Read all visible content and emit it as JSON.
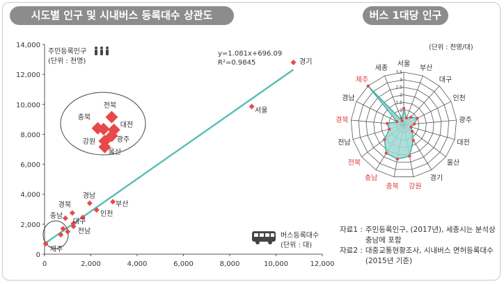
{
  "titles": {
    "left": "시도별 인구 및 시내버스 등록대수 상관도",
    "right": "버스 1대당 인구"
  },
  "chart_data": [
    {
      "type": "scatter",
      "title": "시도별 인구 및 시내버스 등록대수 상관도",
      "ylabel": "주민등록인구 (단위 : 천명)",
      "xlabel": "버스등록대수 (단위 : 대)",
      "ylabel_lines": [
        "주민등록인구",
        "(단위 : 천명)"
      ],
      "xlabel_lines": [
        "버스등록대수",
        "(단위 : 대)"
      ],
      "xlim": [
        0,
        12000
      ],
      "ylim": [
        0,
        14000
      ],
      "x_ticks": [
        0,
        2000,
        4000,
        6000,
        8000,
        10000,
        12000
      ],
      "y_ticks": [
        0,
        2000,
        4000,
        6000,
        8000,
        10000,
        12000,
        14000
      ],
      "x_tick_labels": [
        "0",
        "2,000",
        "4,000",
        "6,000",
        "8,000",
        "10,000",
        "12,000"
      ],
      "y_tick_labels": [
        "0",
        "2,000",
        "4,000",
        "6,000",
        "8,000",
        "10,000",
        "12,000",
        "14,000"
      ],
      "regression": {
        "equation": "y=1.081x+696.09",
        "r2": "R²=0.9845",
        "slope": 1.081,
        "intercept": 696.09
      },
      "points": [
        {
          "label": "경기",
          "x": 10750,
          "y": 12800,
          "size": "small"
        },
        {
          "label": "서울",
          "x": 8950,
          "y": 9850,
          "size": "small"
        },
        {
          "label": "전북",
          "x": 2900,
          "y": 9150,
          "size": "large"
        },
        {
          "label": "충북",
          "x": 2300,
          "y": 8400,
          "size": "large"
        },
        {
          "label": "",
          "x": 2550,
          "y": 8350,
          "size": "large"
        },
        {
          "label": "대전",
          "x": 3000,
          "y": 8300,
          "size": "large"
        },
        {
          "label": "광주",
          "x": 2900,
          "y": 7900,
          "size": "large"
        },
        {
          "label": "강원",
          "x": 2600,
          "y": 7550,
          "size": "large"
        },
        {
          "label": "울산",
          "x": 2600,
          "y": 7150,
          "size": "large"
        },
        {
          "label": "경남",
          "x": 1950,
          "y": 3400,
          "size": "small"
        },
        {
          "label": "부산",
          "x": 2950,
          "y": 3500,
          "size": "small"
        },
        {
          "label": "인천",
          "x": 2250,
          "y": 2950,
          "size": "small"
        },
        {
          "label": "경북",
          "x": 1200,
          "y": 2750,
          "size": "small"
        },
        {
          "label": "충남",
          "x": 900,
          "y": 2400,
          "size": "small"
        },
        {
          "label": "대구",
          "x": 1650,
          "y": 2450,
          "size": "small"
        },
        {
          "label": "",
          "x": 1250,
          "y": 2050,
          "size": "small"
        },
        {
          "label": "전남",
          "x": 1250,
          "y": 1850,
          "size": "small"
        },
        {
          "label": "",
          "x": 800,
          "y": 1700,
          "size": "small"
        },
        {
          "label": "",
          "x": 1000,
          "y": 1500,
          "size": "small"
        },
        {
          "label": "",
          "x": 700,
          "y": 1300,
          "size": "small"
        },
        {
          "label": "제주",
          "x": 50,
          "y": 700,
          "size": "small"
        }
      ]
    },
    {
      "type": "radar",
      "title": "버스 1대당 인구",
      "unit_label": "(단위 : 천명/대)",
      "r_max": 3.5,
      "ticks": [
        0,
        0.5,
        1,
        1.5,
        2,
        2.5,
        3,
        3.5
      ],
      "tick_labels": [
        "0",
        "0.5",
        "1",
        "1.5",
        "2",
        "2.5",
        "3",
        "3.5"
      ],
      "categories": [
        "서울",
        "부산",
        "대구",
        "인천",
        "광주",
        "대전",
        "울산",
        "경기",
        "강원",
        "충북",
        "충남",
        "전북",
        "전남",
        "경북",
        "경남",
        "제주",
        "세종"
      ],
      "category_label_colors": [
        "#333333",
        "#333333",
        "#333333",
        "#333333",
        "#333333",
        "#333333",
        "#333333",
        "#333333",
        "#e0383a",
        "#e0383a",
        "#e0383a",
        "#e0383a",
        "#333333",
        "#e0383a",
        "#333333",
        "#e0383a",
        "#333333"
      ],
      "values": [
        1.1,
        0.5,
        0.7,
        1.0,
        0.7,
        0.5,
        0.7,
        1.2,
        2.1,
        2.3,
        2.2,
        1.6,
        1.0,
        1.1,
        0.5,
        3.5,
        0.3
      ]
    }
  ],
  "sources": [
    {
      "label": "자료1 :",
      "text": "주민등록인구, (2017년), 세종시는 분석상 충남에 포함"
    },
    {
      "label": "자료2 :",
      "text": "대중교통현황조사, 시내버스 면허등록대수(2015년 기준)"
    }
  ],
  "colors": {
    "marker": "#e8484a",
    "regression": "#5bbfb5",
    "radar_fill": "#9fd9d3",
    "radar_line": "#3fb0a5",
    "title_bg": "#8c8c8c"
  },
  "icons": [
    "people-icon",
    "bus-icon"
  ]
}
